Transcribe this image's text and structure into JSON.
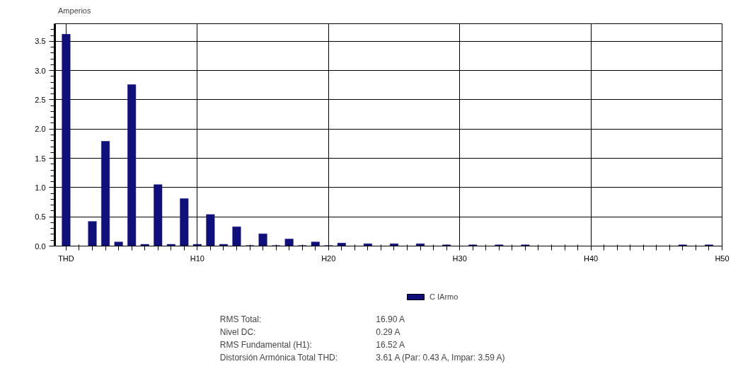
{
  "chart_data": {
    "type": "bar",
    "ylabel": "Amperios",
    "categories": [
      "THD",
      null,
      null,
      null,
      null,
      null,
      null,
      null,
      null,
      null,
      "H10",
      null,
      null,
      null,
      null,
      null,
      null,
      null,
      null,
      null,
      "H20",
      null,
      null,
      null,
      null,
      null,
      null,
      null,
      null,
      null,
      "H30",
      null,
      null,
      null,
      null,
      null,
      null,
      null,
      null,
      null,
      "H40",
      null,
      null,
      null,
      null,
      null,
      null,
      null,
      null,
      null,
      "H50"
    ],
    "series": [
      {
        "name": "C IArmo",
        "color": "#10107c",
        "values": [
          3.62,
          0,
          0.42,
          1.79,
          0.07,
          2.76,
          0.03,
          1.05,
          0.03,
          0.81,
          0.03,
          0.54,
          0.03,
          0.33,
          0.01,
          0.21,
          0.01,
          0.12,
          0.01,
          0.07,
          0.01,
          0.05,
          0,
          0.04,
          0,
          0.04,
          0,
          0.04,
          0,
          0.02,
          0,
          0.02,
          0,
          0.02,
          0,
          0.02,
          0,
          0,
          0,
          0,
          0,
          0,
          0,
          0,
          0,
          0,
          0,
          0.02,
          0,
          0.02,
          0
        ]
      }
    ],
    "ylim": [
      0,
      3.8
    ],
    "yticks": [
      {
        "value": 0,
        "label": "0.0"
      },
      {
        "value": 0.5,
        "label": "0.5"
      },
      {
        "value": 1,
        "label": "1.0"
      },
      {
        "value": 1.5,
        "label": "1.5"
      },
      {
        "value": 2,
        "label": "2.0"
      },
      {
        "value": 2.5,
        "label": "2.5"
      },
      {
        "value": 3,
        "label": "3.0"
      },
      {
        "value": 3.5,
        "label": "3.5"
      }
    ],
    "grid": true,
    "legend": "bottom",
    "annotations": [
      "RMS Total:",
      "16.90 A",
      "Nivel DC:",
      "0.29 A",
      "RMS Fundamental (H1):",
      "16.52 A",
      "Distorsión Armónica Total THD:",
      "3.61 A (Par: 0.43 A, Impar: 3.59 A)"
    ]
  }
}
